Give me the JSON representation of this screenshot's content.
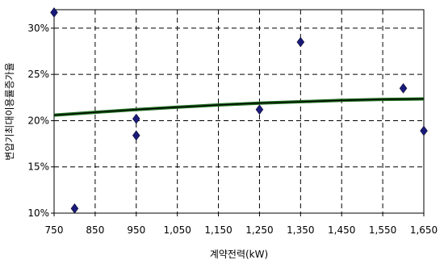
{
  "chart_data": {
    "type": "scatter",
    "xlabel": "계약전력(kW)",
    "ylabel": "변압기최대이용률증가율",
    "xlim": [
      750,
      1650
    ],
    "ylim": [
      10,
      32
    ],
    "x_ticks": [
      750,
      850,
      950,
      1050,
      1150,
      1250,
      1350,
      1450,
      1550,
      1650
    ],
    "x_tick_labels": [
      "750",
      "850",
      "950",
      "1,050",
      "1,150",
      "1,250",
      "1,350",
      "1,450",
      "1,550",
      "1,650"
    ],
    "y_ticks": [
      10,
      15,
      20,
      25,
      30
    ],
    "y_tick_labels": [
      "10%",
      "15%",
      "20%",
      "25%",
      "30%"
    ],
    "grid": true,
    "grid_style": "dashed",
    "series": [
      {
        "kind": "points",
        "marker": "diamond",
        "color": "#1a1a7a",
        "points": [
          {
            "x": 750,
            "y": 31.7
          },
          {
            "x": 800,
            "y": 10.5
          },
          {
            "x": 950,
            "y": 20.2
          },
          {
            "x": 950,
            "y": 18.4
          },
          {
            "x": 1250,
            "y": 21.2
          },
          {
            "x": 1350,
            "y": 28.5
          },
          {
            "x": 1600,
            "y": 23.5
          },
          {
            "x": 1650,
            "y": 18.9
          }
        ]
      },
      {
        "kind": "trendline",
        "color": "#1e6b1e",
        "points": [
          {
            "x": 750,
            "y": 20.6
          },
          {
            "x": 850,
            "y": 20.9
          },
          {
            "x": 950,
            "y": 21.2
          },
          {
            "x": 1050,
            "y": 21.45
          },
          {
            "x": 1150,
            "y": 21.7
          },
          {
            "x": 1250,
            "y": 21.9
          },
          {
            "x": 1350,
            "y": 22.05
          },
          {
            "x": 1450,
            "y": 22.2
          },
          {
            "x": 1550,
            "y": 22.3
          },
          {
            "x": 1650,
            "y": 22.35
          }
        ]
      }
    ]
  }
}
